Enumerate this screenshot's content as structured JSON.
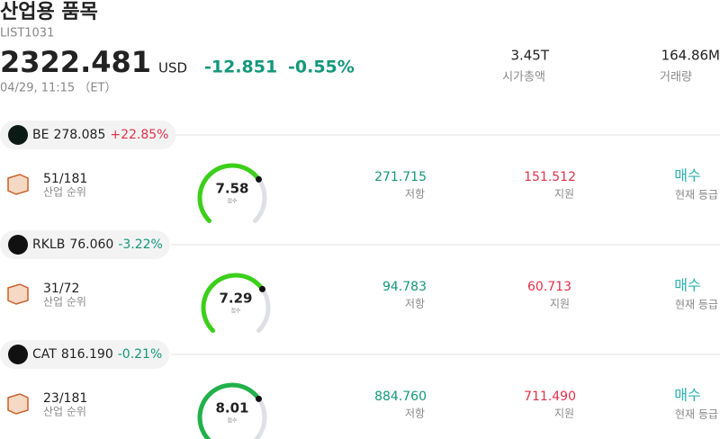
{
  "header": {
    "title": "산업용 품목",
    "code": "LIST1031",
    "price": "2322.481",
    "currency": "USD",
    "change": "-12.851",
    "change_pct": "-0.55%",
    "time": "04/29, 11:15 （ET）"
  },
  "stats": [
    {
      "value": "3.45T",
      "label": "시가총액"
    },
    {
      "value": "164.86M",
      "label": "거래량"
    }
  ],
  "stocks": [
    {
      "ticker": "BE",
      "price": "278.085",
      "change": "+22.85%",
      "rank": "51/181",
      "rank_label": "산업 순위",
      "score": "7.58",
      "score_label": "점수",
      "resistance": "271.715",
      "resistance_label": "저항",
      "support": "151.512",
      "support_label": "지원",
      "rating": "매수",
      "rating_label": "현재 등급"
    },
    {
      "ticker": "RKLB",
      "price": "76.060",
      "change": "-3.22%",
      "rank": "31/72",
      "rank_label": "산업 순위",
      "score": "7.29",
      "score_label": "점수",
      "resistance": "94.783",
      "resistance_label": "저항",
      "support": "60.713",
      "support_label": "지원",
      "rating": "매수",
      "rating_label": "현재 등급"
    },
    {
      "ticker": "CAT",
      "price": "816.190",
      "change": "-0.21%",
      "rank": "23/181",
      "rank_label": "산업 순위",
      "score": "8.01",
      "score_label": "점수",
      "resistance": "884.760",
      "resistance_label": "저항",
      "support": "711.490",
      "support_label": "지원",
      "rating": "매수",
      "rating_label": "현재 등급"
    }
  ]
}
